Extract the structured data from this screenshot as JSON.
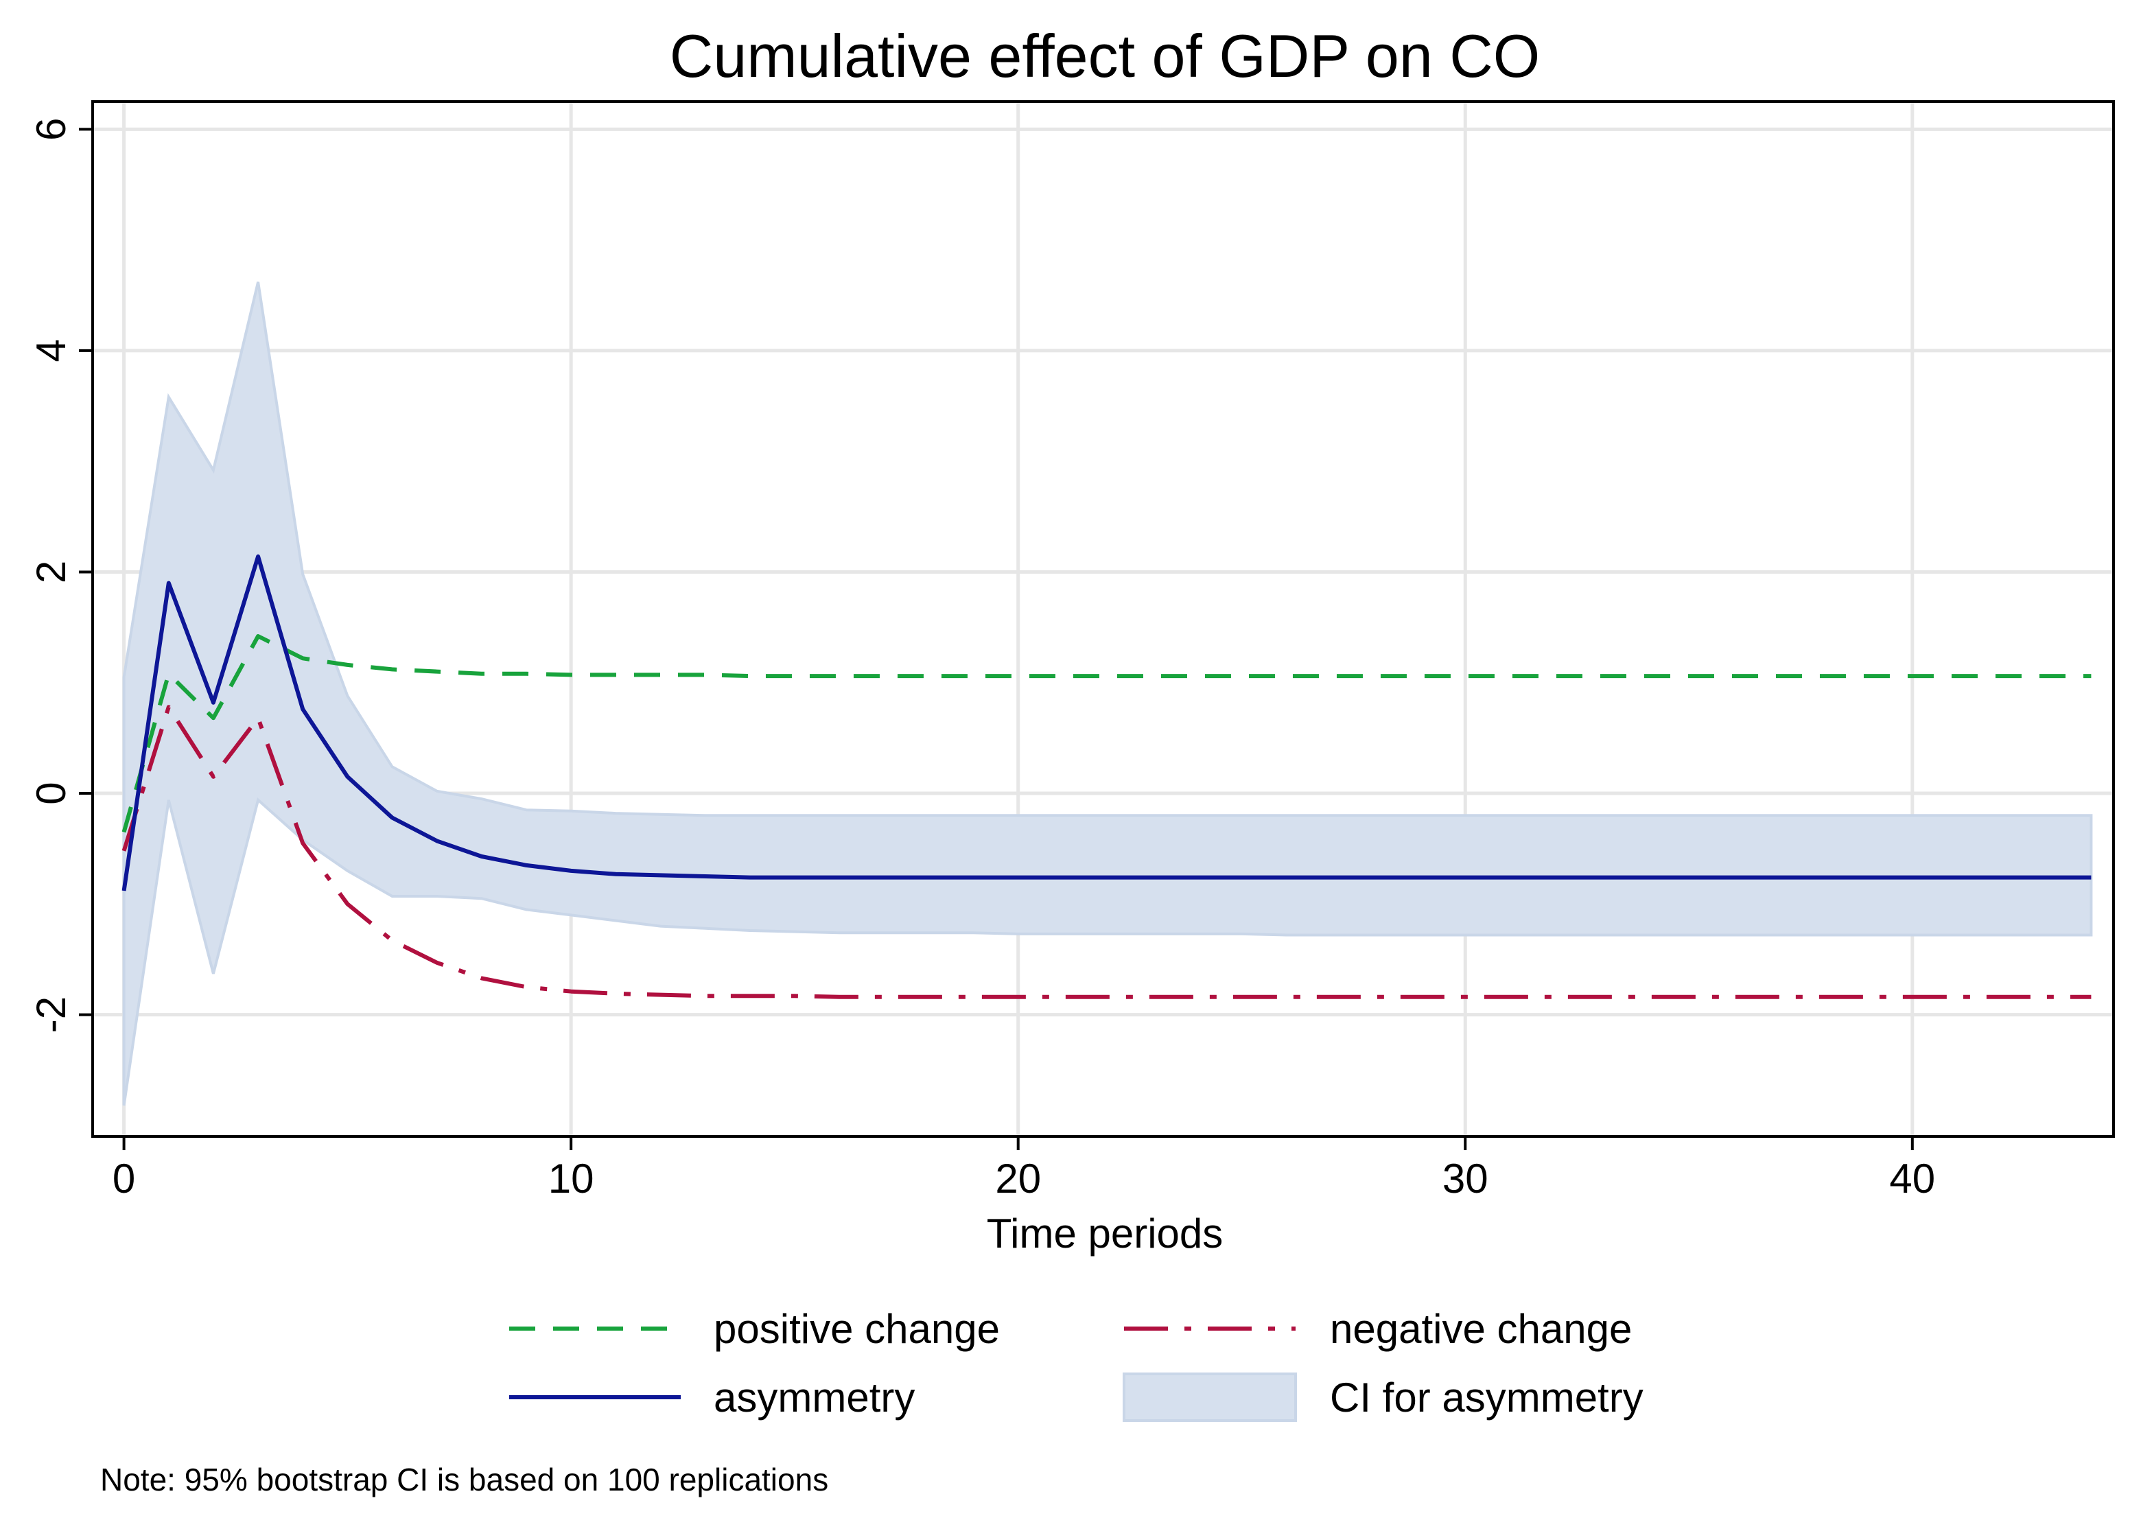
{
  "chart_data": {
    "type": "line",
    "title": "Cumulative effect of GDP on CO",
    "xlabel": "Time periods",
    "ylabel": "",
    "xlim": [
      -0.7,
      44.5
    ],
    "ylim": [
      -3.1,
      6.25
    ],
    "xticks": [
      0,
      10,
      20,
      30,
      40
    ],
    "xtick_labels": [
      "0",
      "10",
      "20",
      "30",
      "40"
    ],
    "yticks": [
      -2,
      0,
      2,
      4,
      6
    ],
    "ytick_labels": [
      "-2",
      "0",
      "2",
      "4",
      "6"
    ],
    "grid": true,
    "legend_position": "bottom",
    "x": [
      0,
      1,
      2,
      3,
      4,
      5,
      6,
      7,
      8,
      9,
      10,
      11,
      12,
      13,
      14,
      15,
      16,
      17,
      18,
      19,
      20,
      21,
      22,
      23,
      24,
      25,
      26,
      27,
      28,
      29,
      30,
      31,
      32,
      33,
      34,
      35,
      36,
      37,
      38,
      39,
      40,
      41,
      42,
      43,
      44
    ],
    "series": [
      {
        "name": "positive change",
        "style": "dash",
        "color": "#18a33c",
        "values": [
          -0.35,
          1.08,
          0.68,
          1.42,
          1.22,
          1.16,
          1.12,
          1.1,
          1.08,
          1.08,
          1.07,
          1.07,
          1.07,
          1.07,
          1.06,
          1.06,
          1.06,
          1.06,
          1.06,
          1.06,
          1.06,
          1.06,
          1.06,
          1.06,
          1.06,
          1.06,
          1.06,
          1.06,
          1.06,
          1.06,
          1.06,
          1.06,
          1.06,
          1.06,
          1.06,
          1.06,
          1.06,
          1.06,
          1.06,
          1.06,
          1.06,
          1.06,
          1.06,
          1.06,
          1.06
        ]
      },
      {
        "name": "negative change",
        "style": "longdash-dot",
        "color": "#b0103f",
        "values": [
          -0.52,
          0.78,
          0.15,
          0.68,
          -0.45,
          -1.0,
          -1.33,
          -1.53,
          -1.67,
          -1.75,
          -1.79,
          -1.81,
          -1.82,
          -1.83,
          -1.83,
          -1.83,
          -1.84,
          -1.84,
          -1.84,
          -1.84,
          -1.84,
          -1.84,
          -1.84,
          -1.84,
          -1.84,
          -1.84,
          -1.84,
          -1.84,
          -1.84,
          -1.84,
          -1.84,
          -1.84,
          -1.84,
          -1.84,
          -1.84,
          -1.84,
          -1.84,
          -1.84,
          -1.84,
          -1.84,
          -1.84,
          -1.84,
          -1.84,
          -1.84,
          -1.84
        ]
      },
      {
        "name": "asymmetry",
        "style": "solid",
        "color": "#0d1696",
        "values": [
          -0.88,
          1.9,
          0.82,
          2.14,
          0.76,
          0.15,
          -0.22,
          -0.43,
          -0.57,
          -0.65,
          -0.7,
          -0.73,
          -0.74,
          -0.75,
          -0.76,
          -0.76,
          -0.76,
          -0.76,
          -0.76,
          -0.76,
          -0.76,
          -0.76,
          -0.76,
          -0.76,
          -0.76,
          -0.76,
          -0.76,
          -0.76,
          -0.76,
          -0.76,
          -0.76,
          -0.76,
          -0.76,
          -0.76,
          -0.76,
          -0.76,
          -0.76,
          -0.76,
          -0.76,
          -0.76,
          -0.76,
          -0.76,
          -0.76,
          -0.76,
          -0.76
        ]
      }
    ],
    "ci": {
      "name": "CI for asymmetry",
      "color": "#d6e0ee",
      "upper": [
        1.05,
        3.58,
        2.92,
        4.62,
        1.98,
        0.88,
        0.24,
        0.02,
        -0.05,
        -0.15,
        -0.16,
        -0.18,
        -0.19,
        -0.2,
        -0.2,
        -0.2,
        -0.2,
        -0.2,
        -0.2,
        -0.2,
        -0.2,
        -0.2,
        -0.2,
        -0.2,
        -0.2,
        -0.2,
        -0.2,
        -0.2,
        -0.2,
        -0.2,
        -0.2,
        -0.2,
        -0.2,
        -0.2,
        -0.2,
        -0.2,
        -0.2,
        -0.2,
        -0.2,
        -0.2,
        -0.2,
        -0.2,
        -0.2,
        -0.2,
        -0.2
      ],
      "lower": [
        -2.82,
        -0.06,
        -1.63,
        -0.06,
        -0.42,
        -0.7,
        -0.93,
        -0.93,
        -0.95,
        -1.05,
        -1.1,
        -1.15,
        -1.2,
        -1.22,
        -1.24,
        -1.25,
        -1.26,
        -1.26,
        -1.26,
        -1.26,
        -1.27,
        -1.27,
        -1.27,
        -1.27,
        -1.27,
        -1.27,
        -1.28,
        -1.28,
        -1.28,
        -1.28,
        -1.28,
        -1.28,
        -1.28,
        -1.28,
        -1.28,
        -1.28,
        -1.28,
        -1.28,
        -1.28,
        -1.28,
        -1.28,
        -1.28,
        -1.28,
        -1.28,
        -1.28
      ]
    },
    "legend": [
      {
        "label": "positive change",
        "style": "dash",
        "color": "#18a33c"
      },
      {
        "label": "negative change",
        "style": "longdash-dot",
        "color": "#b0103f"
      },
      {
        "label": "asymmetry",
        "style": "solid",
        "color": "#0d1696"
      },
      {
        "label": "CI for asymmetry",
        "style": "area",
        "color": "#d6e0ee"
      }
    ],
    "note": "Note: 95% bootstrap CI is based on 100 replications"
  }
}
